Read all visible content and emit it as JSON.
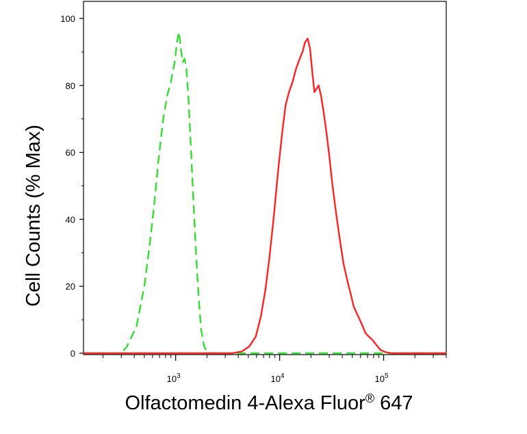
{
  "chart_data": {
    "type": "line",
    "xlabel": "Olfactomedin 4-Alexa Fluor",
    "xlabel_superscript": "®",
    "xlabel_suffix": " 647",
    "ylabel": "Cell Counts (% Max)",
    "x_scale": "log",
    "xlim": [
      130,
      400000
    ],
    "ylim": [
      0,
      100
    ],
    "y_ticks": [
      0,
      20,
      40,
      60,
      80,
      100
    ],
    "y_tick_labels": [
      "0",
      "20",
      "40",
      "60",
      "80",
      "100"
    ],
    "x_ticks": [
      1000,
      10000,
      100000
    ],
    "x_tick_labels": [
      {
        "base": "10",
        "exp": "3"
      },
      {
        "base": "10",
        "exp": "4"
      },
      {
        "base": "10",
        "exp": "5"
      }
    ],
    "grid": false,
    "series": [
      {
        "color": "#33dd33",
        "dash": "dashed",
        "points": [
          [
            130,
            0
          ],
          [
            300,
            0
          ],
          [
            340,
            2
          ],
          [
            420,
            8
          ],
          [
            500,
            20
          ],
          [
            560,
            32
          ],
          [
            620,
            44
          ],
          [
            680,
            57
          ],
          [
            760,
            70
          ],
          [
            830,
            77
          ],
          [
            900,
            81
          ],
          [
            980,
            87
          ],
          [
            1030,
            93
          ],
          [
            1080,
            96
          ],
          [
            1120,
            91
          ],
          [
            1170,
            87
          ],
          [
            1220,
            88
          ],
          [
            1270,
            85
          ],
          [
            1330,
            76
          ],
          [
            1400,
            62
          ],
          [
            1480,
            46
          ],
          [
            1570,
            30
          ],
          [
            1660,
            17
          ],
          [
            1760,
            7
          ],
          [
            1880,
            2
          ],
          [
            2000,
            0.5
          ],
          [
            2200,
            0
          ],
          [
            400000,
            0
          ]
        ]
      },
      {
        "color": "#ff2222",
        "dash": "solid",
        "points": [
          [
            130,
            0
          ],
          [
            3500,
            0
          ],
          [
            4300,
            0.5
          ],
          [
            5100,
            2
          ],
          [
            5900,
            5
          ],
          [
            6600,
            11
          ],
          [
            7300,
            19
          ],
          [
            8000,
            29
          ],
          [
            8800,
            41
          ],
          [
            9700,
            55
          ],
          [
            10600,
            66
          ],
          [
            11400,
            74
          ],
          [
            12300,
            78
          ],
          [
            13300,
            81
          ],
          [
            14400,
            85
          ],
          [
            15600,
            88
          ],
          [
            16600,
            90
          ],
          [
            17600,
            93
          ],
          [
            18600,
            94
          ],
          [
            19600,
            91
          ],
          [
            20600,
            84
          ],
          [
            21600,
            78
          ],
          [
            22600,
            79
          ],
          [
            23700,
            80
          ],
          [
            25000,
            77
          ],
          [
            26500,
            72
          ],
          [
            28200,
            66
          ],
          [
            30000,
            59
          ],
          [
            32000,
            51
          ],
          [
            34500,
            43
          ],
          [
            37500,
            35
          ],
          [
            41000,
            27
          ],
          [
            44500,
            22
          ],
          [
            48000,
            18
          ],
          [
            51500,
            14
          ],
          [
            55000,
            12
          ],
          [
            59000,
            10
          ],
          [
            63000,
            8
          ],
          [
            67000,
            6
          ],
          [
            72000,
            5
          ],
          [
            78000,
            4
          ],
          [
            85000,
            2.5
          ],
          [
            93000,
            1
          ],
          [
            105000,
            0.3
          ],
          [
            120000,
            0
          ],
          [
            400000,
            0
          ]
        ]
      }
    ]
  }
}
